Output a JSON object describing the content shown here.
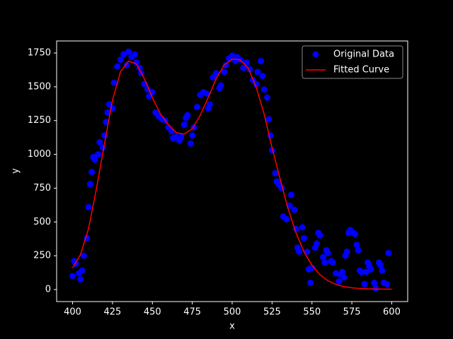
{
  "chart_data": {
    "type": "scatter",
    "xlabel": "x",
    "ylabel": "y",
    "xlim": [
      390,
      610
    ],
    "xticks": [
      400,
      425,
      450,
      475,
      500,
      525,
      550,
      575,
      600
    ],
    "ylim": [
      -89,
      1839
    ],
    "yticks": [
      0,
      250,
      500,
      750,
      1000,
      1250,
      1500,
      1750
    ],
    "legend": "upper right",
    "background": "#000000",
    "foreground": "#ffffff",
    "series": [
      {
        "name": "Original Data",
        "type": "scatter",
        "color": "#0000ff",
        "x": [
          400,
          401,
          402,
          404,
          405,
          406,
          407,
          409,
          410,
          411,
          412,
          413,
          414,
          416,
          417,
          419,
          420,
          421,
          422,
          423,
          425,
          426,
          428,
          430,
          432,
          434,
          435,
          437,
          439,
          440,
          442,
          443,
          445,
          447,
          448,
          450,
          452,
          454,
          456,
          458,
          460,
          462,
          463,
          465,
          467,
          468,
          470,
          471,
          472,
          474,
          475,
          476,
          478,
          480,
          482,
          484,
          485,
          486,
          488,
          490,
          492,
          493,
          495,
          496,
          498,
          500,
          502,
          503,
          505,
          507,
          509,
          511,
          513,
          515,
          516,
          518,
          519,
          520,
          522,
          523,
          524,
          525,
          527,
          528,
          529,
          531,
          532,
          534,
          536,
          537,
          539,
          540,
          541,
          542,
          544,
          545,
          547,
          548,
          549,
          550,
          552,
          553,
          554,
          555,
          557,
          558,
          559,
          560,
          562,
          563,
          565,
          567,
          568,
          569,
          570,
          571,
          572,
          573,
          574,
          576,
          577,
          578,
          579,
          580,
          581,
          583,
          584,
          585,
          586,
          587,
          589,
          590,
          592,
          593,
          594,
          595,
          597,
          598
        ],
        "values": [
          100,
          210,
          190,
          120,
          75,
          140,
          250,
          380,
          610,
          780,
          870,
          980,
          960,
          1000,
          1090,
          1050,
          1140,
          1240,
          1310,
          1370,
          1340,
          1530,
          1650,
          1700,
          1740,
          1660,
          1760,
          1720,
          1740,
          1680,
          1640,
          1600,
          1520,
          1480,
          1430,
          1460,
          1310,
          1280,
          1260,
          1250,
          1200,
          1170,
          1120,
          1130,
          1100,
          1130,
          1220,
          1270,
          1290,
          1080,
          1140,
          1200,
          1350,
          1440,
          1460,
          1450,
          1340,
          1370,
          1570,
          1600,
          1490,
          1510,
          1610,
          1660,
          1710,
          1730,
          1690,
          1720,
          1700,
          1640,
          1680,
          1630,
          1550,
          1520,
          1610,
          1690,
          1580,
          1480,
          1420,
          1260,
          1140,
          1030,
          860,
          800,
          780,
          750,
          540,
          520,
          620,
          700,
          590,
          450,
          310,
          280,
          460,
          380,
          280,
          150,
          50,
          160,
          310,
          340,
          420,
          400,
          240,
          200,
          290,
          270,
          210,
          200,
          120,
          60,
          110,
          130,
          90,
          250,
          280,
          420,
          440,
          420,
          410,
          330,
          290,
          140,
          130,
          40,
          130,
          200,
          170,
          150,
          50,
          10,
          200,
          180,
          140,
          50,
          40,
          270
        ]
      },
      {
        "name": "Fitted Curve",
        "type": "line",
        "color": "#ff0000",
        "x": [
          400,
          405,
          410,
          415,
          420,
          425,
          430,
          435,
          440,
          445,
          450,
          455,
          460,
          465,
          470,
          475,
          480,
          485,
          490,
          495,
          500,
          505,
          510,
          515,
          520,
          525,
          530,
          535,
          540,
          545,
          550,
          555,
          560,
          565,
          570,
          575,
          580,
          585,
          590,
          595,
          600
        ],
        "values": [
          160,
          260,
          450,
          750,
          1080,
          1400,
          1610,
          1690,
          1670,
          1560,
          1420,
          1300,
          1220,
          1160,
          1150,
          1190,
          1290,
          1420,
          1560,
          1660,
          1705,
          1700,
          1640,
          1500,
          1300,
          1050,
          820,
          600,
          420,
          280,
          180,
          110,
          65,
          38,
          22,
          13,
          8,
          5,
          4,
          3,
          3
        ]
      }
    ]
  }
}
